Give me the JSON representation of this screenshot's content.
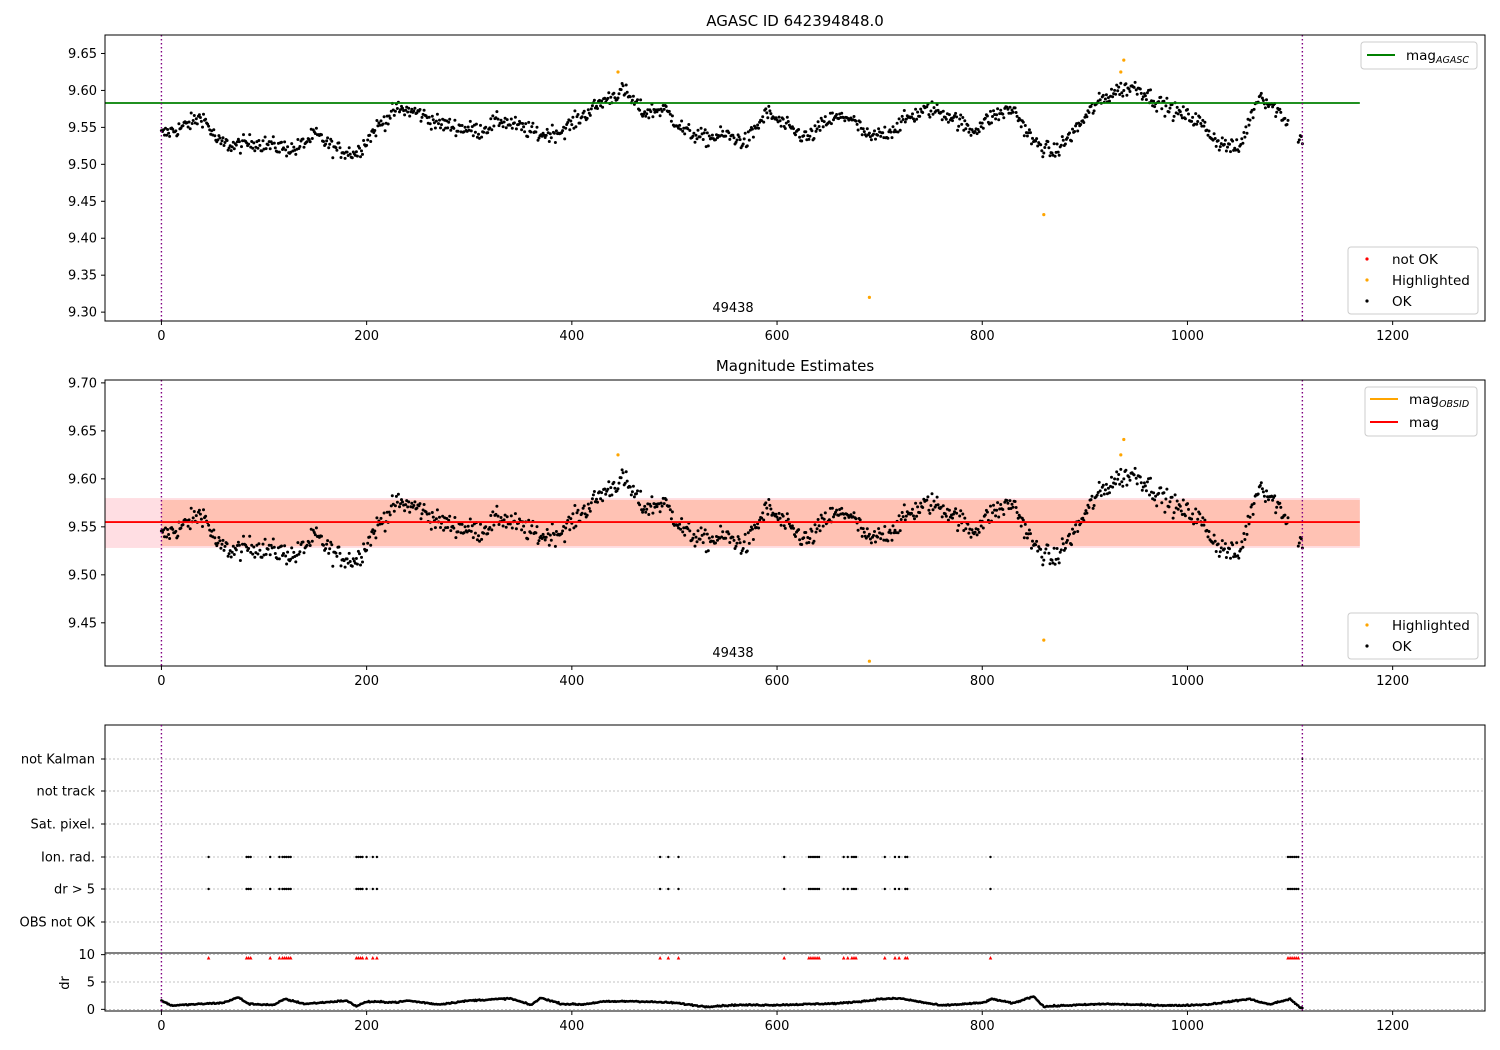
{
  "chart_data": [
    {
      "type": "scatter",
      "title": "AGASC ID 642394848.0",
      "xlim": [
        -55,
        1290
      ],
      "ylim": [
        9.288,
        9.675
      ],
      "xticks": [
        0,
        200,
        400,
        600,
        800,
        1000,
        1200
      ],
      "yticks": [
        9.3,
        9.35,
        9.4,
        9.45,
        9.5,
        9.55,
        9.6,
        9.65
      ],
      "vlines": [
        0,
        1112
      ],
      "annotation": {
        "text": "49438",
        "x": 556
      },
      "hline": {
        "name": "mag_AGASC",
        "y": 9.583,
        "x_range": [
          -55,
          1168
        ],
        "color": "#008000"
      },
      "legend_top": [
        {
          "label": "mag",
          "sub": "AGASC",
          "color": "#008000"
        }
      ],
      "legend_bottom": [
        {
          "label": "not OK",
          "color": "#ff0000"
        },
        {
          "label": "Highlighted",
          "color": "#ffa500"
        },
        {
          "label": "OK",
          "color": "#000000"
        }
      ],
      "highlighted_points": [
        [
          445,
          9.625
        ],
        [
          690,
          9.32
        ],
        [
          860,
          9.432
        ],
        [
          938,
          9.641
        ],
        [
          935,
          9.625
        ]
      ],
      "series_ok_trend": {
        "x": [
          0,
          20,
          40,
          55,
          70,
          90,
          110,
          130,
          150,
          170,
          190,
          210,
          230,
          250,
          270,
          290,
          310,
          330,
          350,
          370,
          390,
          410,
          430,
          450,
          470,
          490,
          510,
          530,
          550,
          570,
          590,
          610,
          630,
          650,
          670,
          690,
          710,
          730,
          750,
          770,
          790,
          810,
          830,
          850,
          870,
          890,
          910,
          930,
          950,
          970,
          990,
          1010,
          1030,
          1050,
          1070,
          1090,
          1110
        ],
        "y": [
          9.54,
          9.55,
          9.565,
          9.53,
          9.525,
          9.53,
          9.525,
          9.52,
          9.54,
          9.52,
          9.515,
          9.55,
          9.575,
          9.57,
          9.555,
          9.55,
          9.545,
          9.56,
          9.55,
          9.54,
          9.545,
          9.565,
          9.585,
          9.6,
          9.57,
          9.575,
          9.545,
          9.535,
          9.54,
          9.53,
          9.57,
          9.55,
          9.535,
          9.56,
          9.565,
          9.535,
          9.545,
          9.565,
          9.575,
          9.565,
          9.545,
          9.565,
          9.575,
          9.53,
          9.515,
          9.545,
          9.58,
          9.6,
          9.605,
          9.585,
          9.57,
          9.56,
          9.53,
          9.52,
          9.595,
          9.57,
          9.535
        ]
      }
    },
    {
      "type": "scatter",
      "title": "Magnitude Estimates",
      "xlim": [
        -55,
        1290
      ],
      "ylim": [
        9.405,
        9.703
      ],
      "xticks": [
        0,
        200,
        400,
        600,
        800,
        1000,
        1200
      ],
      "yticks": [
        9.45,
        9.5,
        9.55,
        9.6,
        9.65,
        9.7
      ],
      "vlines": [
        0,
        1112
      ],
      "annotation": {
        "text": "49438",
        "x": 556
      },
      "hline": {
        "name": "mag",
        "y": 9.555,
        "x_range": [
          -55,
          1168
        ],
        "color": "#ff0000"
      },
      "bands": [
        {
          "y0": 9.528,
          "y1": 9.58,
          "color": "#ffb6c1",
          "opacity": 0.45
        },
        {
          "y0": 9.53,
          "y1": 9.578,
          "color": "#ffa07a",
          "opacity": 0.45
        }
      ],
      "legend_top": [
        {
          "label": "mag",
          "sub": "OBSID",
          "color": "#ffa500"
        },
        {
          "label": "mag",
          "sub": "",
          "color": "#ff0000"
        }
      ],
      "legend_bottom": [
        {
          "label": "Highlighted",
          "color": "#ffa500"
        },
        {
          "label": "OK",
          "color": "#000000"
        }
      ],
      "highlighted_points": [
        [
          445,
          9.625
        ],
        [
          690,
          9.41
        ],
        [
          860,
          9.432
        ],
        [
          938,
          9.641
        ],
        [
          935,
          9.625
        ]
      ]
    },
    {
      "type": "scatter",
      "title": "",
      "xlim": [
        -55,
        1290
      ],
      "xticks": [
        0,
        200,
        400,
        600,
        800,
        1000,
        1200
      ],
      "vlines": [
        0,
        1112
      ],
      "flag_rows": [
        "not Kalman",
        "not track",
        "Sat. pixel.",
        "Ion. rad.",
        "dr > 5",
        "OBS not OK"
      ],
      "flag_events_x": [
        46,
        83,
        85,
        87,
        106,
        115,
        118,
        120,
        122,
        124,
        126,
        190,
        192,
        194,
        196,
        200,
        206,
        210,
        486,
        494,
        504,
        607,
        631,
        633,
        635,
        637,
        639,
        641,
        665,
        669,
        673,
        675,
        677,
        705,
        715,
        719,
        725,
        727,
        808,
        1098,
        1100,
        1102,
        1104,
        1106,
        1108
      ],
      "dr_ylabel": "dr",
      "dr_yticks": [
        0,
        5,
        10
      ],
      "dr_ylim": [
        -0.3,
        10.3
      ],
      "dr_trend": {
        "x": [
          0,
          10,
          30,
          60,
          75,
          85,
          110,
          120,
          140,
          160,
          180,
          190,
          200,
          230,
          240,
          270,
          300,
          340,
          360,
          370,
          390,
          410,
          430,
          460,
          500,
          530,
          560,
          600,
          620,
          660,
          690,
          700,
          720,
          760,
          800,
          810,
          830,
          850,
          860,
          880,
          920,
          960,
          990,
          1020,
          1060,
          1080,
          1100,
          1110
        ],
        "y": [
          1.6,
          0.7,
          0.9,
          1.2,
          2.2,
          1.0,
          0.8,
          1.9,
          1.0,
          1.3,
          1.6,
          0.6,
          1.4,
          1.3,
          1.6,
          0.9,
          1.6,
          2.0,
          0.8,
          2.1,
          1.0,
          0.9,
          1.4,
          1.5,
          1.2,
          0.5,
          0.8,
          0.8,
          0.9,
          1.1,
          1.6,
          1.9,
          2.0,
          0.7,
          1.2,
          1.9,
          1.1,
          2.4,
          0.5,
          0.7,
          1.0,
          0.8,
          0.7,
          0.9,
          1.9,
          0.9,
          1.9,
          0.3
        ]
      },
      "marker_color": "#ff0000",
      "axis_break_label": "10"
    }
  ]
}
